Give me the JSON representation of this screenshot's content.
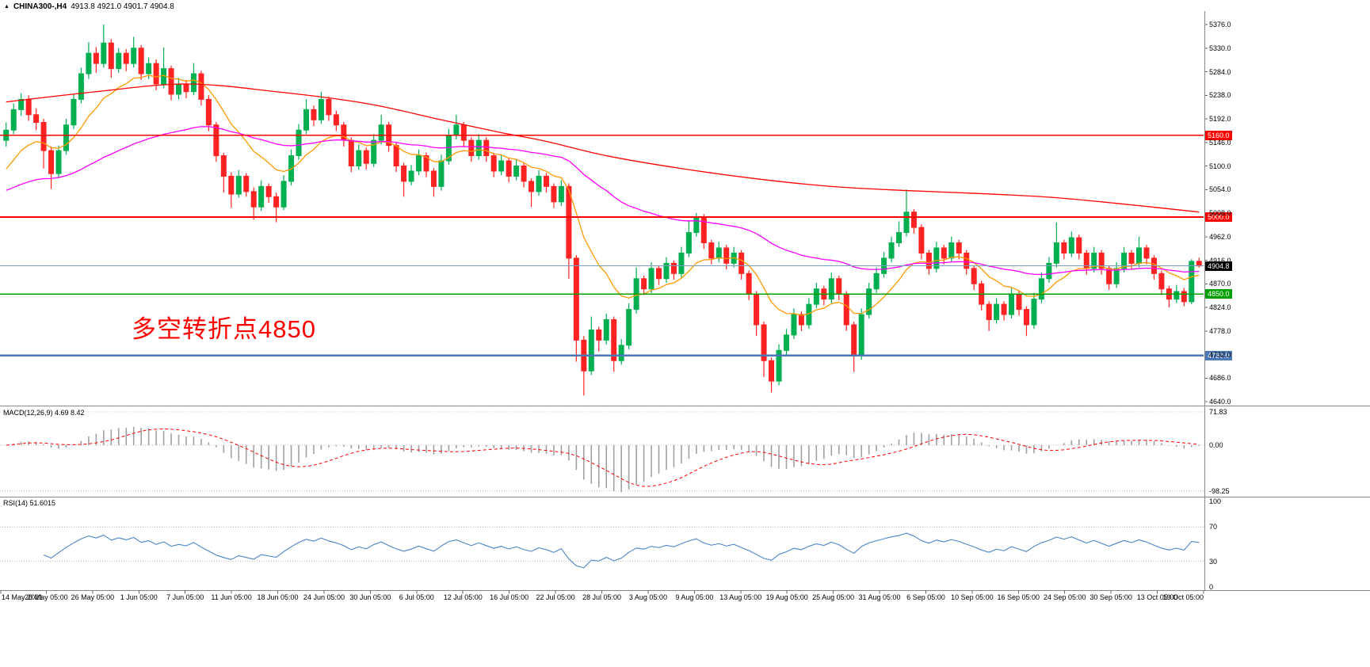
{
  "header": {
    "icon": "▲",
    "symbol": "CHINA300-,H4",
    "ohlc": "4913.8 4921.0 4901.7 4904.8"
  },
  "annotation": {
    "text": "多空转折点4850",
    "color": "#ff0000"
  },
  "price_axis": {
    "labels": [
      "5376.0",
      "5330.0",
      "5284.0",
      "5238.0",
      "5192.0",
      "5146.0",
      "5100.0",
      "5054.0",
      "5008.0",
      "4962.0",
      "4916.0",
      "4870.0",
      "4824.0",
      "4778.0",
      "4732.0",
      "4686.0",
      "4640.0"
    ],
    "values": [
      5376,
      5330,
      5284,
      5238,
      5192,
      5146,
      5100,
      5054,
      5008,
      4962,
      4916,
      4870,
      4824,
      4778,
      4732,
      4686,
      4640
    ]
  },
  "time_axis": {
    "labels": [
      "14 May 2021",
      "20 May 05:00",
      "26 May 05:00",
      "1 Jun 05:00",
      "7 Jun 05:00",
      "11 Jun 05:00",
      "18 Jun 05:00",
      "24 Jun 05:00",
      "30 Jun 05:00",
      "6 Jul 05:00",
      "12 Jul 05:00",
      "16 Jul 05:00",
      "22 Jul 05:00",
      "28 Jul 05:00",
      "3 Aug 05:00",
      "9 Aug 05:00",
      "13 Aug 05:00",
      "19 Aug 05:00",
      "25 Aug 05:00",
      "31 Aug 05:00",
      "6 Sep 05:00",
      "10 Sep 05:00",
      "16 Sep 05:00",
      "24 Sep 05:00",
      "30 Sep 05:00",
      "13 Oct 05:00",
      "19 Oct 05:00"
    ]
  },
  "levels": [
    {
      "price": 5160,
      "label": "5160.0",
      "color": "#ff0000",
      "width": 1.6
    },
    {
      "price": 5000,
      "label": "5000.0",
      "color": "#ff0000",
      "width": 2
    },
    {
      "price": 4850,
      "label": "4850.0",
      "color": "#00a000",
      "width": 1.8
    },
    {
      "price": 4730,
      "label": "4730.0",
      "color": "#4a78b8",
      "width": 2.2
    }
  ],
  "current_price": {
    "value": 4904.8,
    "label": "4904.8",
    "line_color": "#7a9cbf",
    "badge_bg": "#000000"
  },
  "macd_panel": {
    "label": "MACD(12,26,9) 4.69 8.42",
    "fast": 12,
    "slow": 26,
    "signal_period": 9,
    "main_value": 4.69,
    "signal_value": 8.42,
    "axis_labels": [
      "71.83",
      "0.00",
      "-98.25"
    ],
    "axis_values": [
      71.83,
      0,
      -98.25
    ],
    "histogram_color": "#a0a0a0",
    "signal_color": "#ff0000"
  },
  "rsi_panel": {
    "label": "RSI(14) 51.6015",
    "period": 14,
    "value": 51.6015,
    "axis_labels": [
      "100",
      "70",
      "30",
      "0"
    ],
    "axis_values": [
      100,
      70,
      30,
      0
    ],
    "level_lines": [
      70,
      30
    ],
    "line_color": "#4a86c8"
  },
  "chart_data": {
    "type": "candlestick",
    "title": "CHINA300- H4",
    "symbol": "CHINA300-",
    "timeframe": "H4",
    "ylim": [
      4640,
      5376
    ],
    "up_color": "#00b050",
    "down_color": "#ff2222",
    "candles": [
      [
        5150,
        5185,
        5138,
        5170
      ],
      [
        5170,
        5222,
        5162,
        5210
      ],
      [
        5210,
        5242,
        5198,
        5230
      ],
      [
        5230,
        5238,
        5188,
        5200
      ],
      [
        5200,
        5212,
        5170,
        5185
      ],
      [
        5185,
        5192,
        5095,
        5130
      ],
      [
        5130,
        5138,
        5055,
        5085
      ],
      [
        5085,
        5140,
        5078,
        5130
      ],
      [
        5130,
        5192,
        5122,
        5180
      ],
      [
        5180,
        5240,
        5172,
        5230
      ],
      [
        5230,
        5292,
        5222,
        5280
      ],
      [
        5280,
        5342,
        5270,
        5320
      ],
      [
        5320,
        5332,
        5282,
        5300
      ],
      [
        5300,
        5376,
        5292,
        5340
      ],
      [
        5340,
        5348,
        5272,
        5290
      ],
      [
        5290,
        5330,
        5282,
        5320
      ],
      [
        5320,
        5328,
        5285,
        5300
      ],
      [
        5300,
        5352,
        5292,
        5330
      ],
      [
        5330,
        5336,
        5268,
        5280
      ],
      [
        5280,
        5312,
        5270,
        5300
      ],
      [
        5300,
        5308,
        5248,
        5260
      ],
      [
        5260,
        5331,
        5252,
        5290
      ],
      [
        5290,
        5296,
        5228,
        5240
      ],
      [
        5240,
        5272,
        5230,
        5260
      ],
      [
        5260,
        5268,
        5232,
        5245
      ],
      [
        5245,
        5301,
        5238,
        5280
      ],
      [
        5280,
        5286,
        5218,
        5230
      ],
      [
        5230,
        5238,
        5168,
        5180
      ],
      [
        5180,
        5186,
        5108,
        5120
      ],
      [
        5120,
        5126,
        5048,
        5080
      ],
      [
        5080,
        5088,
        5018,
        5045
      ],
      [
        5045,
        5092,
        5038,
        5080
      ],
      [
        5080,
        5086,
        5040,
        5050
      ],
      [
        5050,
        5058,
        4995,
        5020
      ],
      [
        5020,
        5072,
        5012,
        5060
      ],
      [
        5060,
        5066,
        5028,
        5040
      ],
      [
        5040,
        5048,
        4990,
        5020
      ],
      [
        5020,
        5082,
        5014,
        5070
      ],
      [
        5070,
        5132,
        5062,
        5120
      ],
      [
        5120,
        5182,
        5112,
        5170
      ],
      [
        5170,
        5230,
        5162,
        5210
      ],
      [
        5210,
        5218,
        5178,
        5190
      ],
      [
        5190,
        5245,
        5182,
        5230
      ],
      [
        5230,
        5236,
        5188,
        5200
      ],
      [
        5200,
        5208,
        5168,
        5180
      ],
      [
        5180,
        5186,
        5138,
        5150
      ],
      [
        5150,
        5156,
        5088,
        5100
      ],
      [
        5100,
        5142,
        5092,
        5130
      ],
      [
        5130,
        5136,
        5093,
        5105
      ],
      [
        5105,
        5162,
        5098,
        5150
      ],
      [
        5150,
        5200,
        5142,
        5180
      ],
      [
        5180,
        5186,
        5128,
        5140
      ],
      [
        5140,
        5146,
        5088,
        5100
      ],
      [
        5100,
        5106,
        5040,
        5070
      ],
      [
        5070,
        5102,
        5062,
        5090
      ],
      [
        5090,
        5132,
        5082,
        5120
      ],
      [
        5120,
        5126,
        5078,
        5090
      ],
      [
        5090,
        5096,
        5040,
        5060
      ],
      [
        5060,
        5122,
        5052,
        5110
      ],
      [
        5110,
        5172,
        5102,
        5160
      ],
      [
        5160,
        5200,
        5152,
        5180
      ],
      [
        5180,
        5186,
        5138,
        5150
      ],
      [
        5150,
        5156,
        5108,
        5120
      ],
      [
        5120,
        5162,
        5112,
        5150
      ],
      [
        5150,
        5156,
        5108,
        5120
      ],
      [
        5120,
        5126,
        5078,
        5090
      ],
      [
        5090,
        5122,
        5082,
        5110
      ],
      [
        5110,
        5116,
        5068,
        5080
      ],
      [
        5080,
        5112,
        5072,
        5100
      ],
      [
        5100,
        5106,
        5058,
        5070
      ],
      [
        5070,
        5076,
        5020,
        5050
      ],
      [
        5050,
        5092,
        5042,
        5080
      ],
      [
        5080,
        5086,
        5048,
        5060
      ],
      [
        5060,
        5066,
        5018,
        5030
      ],
      [
        5030,
        5072,
        5022,
        5060
      ],
      [
        5060,
        5066,
        4880,
        4920
      ],
      [
        4920,
        4926,
        4718,
        4760
      ],
      [
        4760,
        4768,
        4652,
        4700
      ],
      [
        4700,
        4806,
        4692,
        4780
      ],
      [
        4780,
        4786,
        4738,
        4760
      ],
      [
        4760,
        4812,
        4752,
        4800
      ],
      [
        4800,
        4806,
        4698,
        4720
      ],
      [
        4720,
        4762,
        4712,
        4750
      ],
      [
        4750,
        4832,
        4742,
        4820
      ],
      [
        4820,
        4902,
        4812,
        4880
      ],
      [
        4880,
        4886,
        4848,
        4860
      ],
      [
        4860,
        4912,
        4852,
        4900
      ],
      [
        4900,
        4906,
        4868,
        4880
      ],
      [
        4880,
        4922,
        4872,
        4910
      ],
      [
        4910,
        4916,
        4878,
        4890
      ],
      [
        4890,
        4942,
        4882,
        4930
      ],
      [
        4930,
        4992,
        4922,
        4970
      ],
      [
        4970,
        5008,
        4962,
        5000
      ],
      [
        5000,
        5006,
        4938,
        4950
      ],
      [
        4950,
        4956,
        4908,
        4920
      ],
      [
        4920,
        4952,
        4912,
        4940
      ],
      [
        4940,
        4946,
        4898,
        4910
      ],
      [
        4910,
        4942,
        4902,
        4930
      ],
      [
        4930,
        4936,
        4878,
        4890
      ],
      [
        4890,
        4896,
        4838,
        4850
      ],
      [
        4850,
        4856,
        4768,
        4790
      ],
      [
        4790,
        4796,
        4688,
        4720
      ],
      [
        4720,
        4726,
        4658,
        4680
      ],
      [
        4680,
        4752,
        4672,
        4740
      ],
      [
        4740,
        4782,
        4732,
        4770
      ],
      [
        4770,
        4822,
        4762,
        4810
      ],
      [
        4810,
        4816,
        4778,
        4790
      ],
      [
        4790,
        4842,
        4782,
        4830
      ],
      [
        4830,
        4872,
        4822,
        4860
      ],
      [
        4860,
        4866,
        4828,
        4840
      ],
      [
        4840,
        4892,
        4832,
        4880
      ],
      [
        4880,
        4886,
        4838,
        4850
      ],
      [
        4850,
        4856,
        4778,
        4790
      ],
      [
        4790,
        4796,
        4698,
        4730
      ],
      [
        4730,
        4822,
        4722,
        4810
      ],
      [
        4810,
        4872,
        4802,
        4860
      ],
      [
        4860,
        4902,
        4852,
        4890
      ],
      [
        4890,
        4932,
        4882,
        4920
      ],
      [
        4920,
        4962,
        4912,
        4950
      ],
      [
        4950,
        4992,
        4942,
        4970
      ],
      [
        4970,
        5054,
        4962,
        5010
      ],
      [
        5010,
        5016,
        4968,
        4980
      ],
      [
        4980,
        4986,
        4918,
        4930
      ],
      [
        4930,
        4936,
        4888,
        4900
      ],
      [
        4900,
        4952,
        4892,
        4940
      ],
      [
        4940,
        4946,
        4908,
        4920
      ],
      [
        4920,
        4962,
        4912,
        4950
      ],
      [
        4950,
        4956,
        4918,
        4930
      ],
      [
        4930,
        4936,
        4888,
        4900
      ],
      [
        4900,
        4906,
        4858,
        4870
      ],
      [
        4870,
        4876,
        4818,
        4830
      ],
      [
        4830,
        4836,
        4778,
        4800
      ],
      [
        4800,
        4842,
        4792,
        4830
      ],
      [
        4830,
        4836,
        4798,
        4810
      ],
      [
        4810,
        4862,
        4802,
        4850
      ],
      [
        4850,
        4856,
        4808,
        4820
      ],
      [
        4820,
        4826,
        4768,
        4790
      ],
      [
        4790,
        4852,
        4782,
        4840
      ],
      [
        4840,
        4892,
        4832,
        4880
      ],
      [
        4880,
        4922,
        4872,
        4910
      ],
      [
        4910,
        4990,
        4902,
        4950
      ],
      [
        4950,
        4956,
        4918,
        4930
      ],
      [
        4930,
        4972,
        4922,
        4960
      ],
      [
        4960,
        4966,
        4918,
        4930
      ],
      [
        4930,
        4936,
        4888,
        4900
      ],
      [
        4900,
        4942,
        4892,
        4930
      ],
      [
        4930,
        4936,
        4888,
        4900
      ],
      [
        4900,
        4906,
        4858,
        4870
      ],
      [
        4870,
        4912,
        4862,
        4900
      ],
      [
        4900,
        4942,
        4892,
        4930
      ],
      [
        4930,
        4936,
        4898,
        4910
      ],
      [
        4910,
        4962,
        4902,
        4940
      ],
      [
        4940,
        4946,
        4908,
        4920
      ],
      [
        4920,
        4926,
        4878,
        4890
      ],
      [
        4890,
        4896,
        4848,
        4860
      ],
      [
        4860,
        4866,
        4824,
        4840
      ],
      [
        4840,
        4868,
        4832,
        4855
      ],
      [
        4855,
        4862,
        4826,
        4835
      ],
      [
        4835,
        4918,
        4830,
        4913.8
      ],
      [
        4913.8,
        4921.0,
        4901.7,
        4904.8
      ]
    ],
    "moving_averages": [
      {
        "name": "ma-short",
        "style": "ema",
        "period": 12,
        "seed": 5080,
        "color": "#ff9900"
      },
      {
        "name": "ma-mid",
        "style": "ema",
        "period": 55,
        "seed": 5048,
        "color": "#ff00ff"
      },
      {
        "name": "ma-long",
        "style": "points",
        "color": "#ff0000",
        "points": [
          [
            0,
            5225
          ],
          [
            12,
            5245
          ],
          [
            24,
            5260
          ],
          [
            36,
            5245
          ],
          [
            48,
            5222
          ],
          [
            58,
            5190
          ],
          [
            66,
            5165
          ],
          [
            72,
            5148
          ],
          [
            80,
            5120
          ],
          [
            90,
            5095
          ],
          [
            100,
            5075
          ],
          [
            110,
            5060
          ],
          [
            120,
            5052
          ],
          [
            130,
            5046
          ],
          [
            140,
            5038
          ],
          [
            150,
            5024
          ],
          [
            159,
            5010
          ]
        ]
      }
    ]
  }
}
